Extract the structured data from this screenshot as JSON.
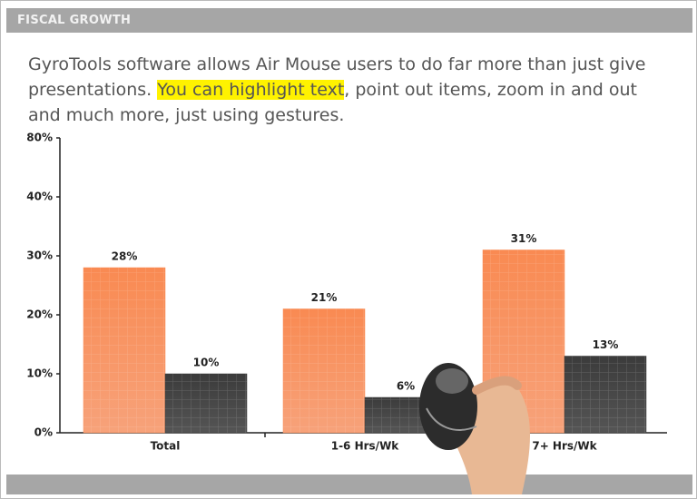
{
  "header": {
    "title": "FISCAL GROWTH"
  },
  "paragraph": {
    "before": "GyroTools software allows Air Mouse users to do far more than just give presentations.",
    "highlighted": "You can highlight text",
    "after": ", point out items, zoom in and out and much more, just using gestures."
  },
  "chart_data": {
    "type": "bar",
    "categories": [
      "Total",
      "1-6 Hrs/Wk",
      "7+ Hrs/Wk"
    ],
    "series": [
      {
        "color": "#f98a52",
        "values": [
          28,
          21,
          31
        ],
        "value_labels": [
          "28%",
          "21%",
          "31%"
        ]
      },
      {
        "color": "#3b3b3b",
        "values": [
          10,
          6,
          13
        ],
        "value_labels": [
          "10%",
          "6%",
          "13%"
        ]
      }
    ],
    "ylim": [
      0,
      80
    ],
    "y_break": [
      40,
      80
    ],
    "yticks": [
      {
        "value": 0,
        "label": "0%"
      },
      {
        "value": 10,
        "label": "10%"
      },
      {
        "value": 20,
        "label": "20%"
      },
      {
        "value": 30,
        "label": "30%"
      },
      {
        "value": 40,
        "label": "40%"
      },
      {
        "value": 80,
        "label": "80%"
      }
    ]
  }
}
